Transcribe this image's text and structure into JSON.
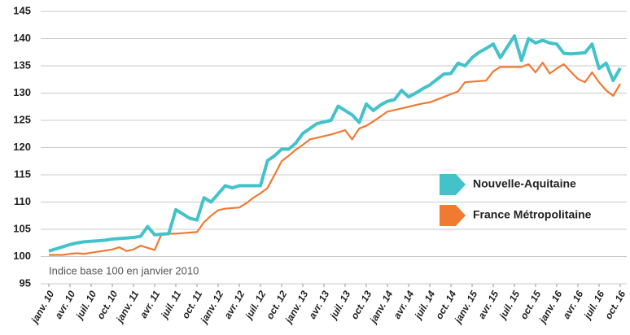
{
  "chart_data": {
    "type": "line",
    "note": "Indice base 100 en janvier 2010",
    "categories": [
      "janv. 10",
      null,
      null,
      "avr. 10",
      null,
      null,
      "juil. 10",
      null,
      null,
      "oct. 10",
      null,
      null,
      "janv. 11",
      null,
      null,
      "avr. 11",
      null,
      null,
      "juil. 11",
      null,
      null,
      "oct. 11",
      null,
      null,
      "janv. 12",
      null,
      null,
      "avr. 12",
      null,
      null,
      "juil. 12",
      null,
      null,
      "oct. 12",
      null,
      null,
      "janv. 13",
      null,
      null,
      "avr. 13",
      null,
      null,
      "juil. 13",
      null,
      null,
      "oct. 13",
      null,
      null,
      "janv. 14",
      null,
      null,
      "avr. 14",
      null,
      null,
      "juil. 14",
      null,
      null,
      "oct. 14",
      null,
      null,
      "janv. 15",
      null,
      null,
      "avr. 15",
      null,
      null,
      "juil. 15",
      null,
      null,
      "oct. 15",
      null,
      null,
      "janv. 16",
      null,
      null,
      "avr. 16",
      null,
      null,
      "juil. 16",
      null,
      null,
      "oct. 16"
    ],
    "series": [
      {
        "name": "Nouvelle-Aquitaine",
        "color": "#44c2c9",
        "values": [
          101,
          101.4,
          101.8,
          102.2,
          102.5,
          102.7,
          102.8,
          102.9,
          103,
          103.2,
          103.3,
          103.4,
          103.5,
          103.7,
          105.5,
          104,
          104.1,
          104.2,
          108.6,
          107.8,
          107,
          106.7,
          110.8,
          110,
          111.5,
          113,
          112.6,
          113,
          113,
          113,
          113,
          117.6,
          118.5,
          119.7,
          119.7,
          120.8,
          122.6,
          123.5,
          124.4,
          124.7,
          125,
          127.6,
          126.8,
          126,
          124.6,
          128,
          126.8,
          127.8,
          128.5,
          128.8,
          130.5,
          129.3,
          130,
          130.8,
          131.5,
          132.5,
          133.5,
          133.6,
          135.5,
          135,
          136.5,
          137.5,
          138.2,
          139,
          136.5,
          138.5,
          140.5,
          136,
          140,
          139.2,
          139.7,
          139.2,
          139,
          137.3,
          137.2,
          137.3,
          137.4,
          139,
          134.5,
          135.5,
          132.3,
          134.6
        ]
      },
      {
        "name": "France Métropolitaine",
        "color": "#f07a32",
        "values": [
          100.3,
          100.3,
          100.3,
          100.5,
          100.6,
          100.5,
          100.7,
          100.9,
          101.1,
          101.3,
          101.7,
          101.0,
          101.3,
          102.0,
          101.6,
          101.2,
          104.2,
          104.2,
          104.2,
          104.3,
          104.4,
          104.5,
          106.3,
          107.5,
          108.5,
          108.8,
          108.9,
          109.0,
          109.8,
          110.8,
          111.6,
          112.6,
          115.0,
          117.5,
          118.5,
          119.6,
          120.5,
          121.5,
          121.8,
          122.1,
          122.4,
          122.8,
          123.2,
          121.5,
          123.5,
          124.0,
          124.8,
          125.7,
          126.6,
          126.9,
          127.2,
          127.5,
          127.8,
          128.1,
          128.3,
          128.8,
          129.3,
          129.8,
          130.3,
          132.0,
          132.1,
          132.2,
          132.3,
          134.0,
          134.8,
          134.8,
          134.8,
          134.8,
          135.3,
          133.8,
          135.6,
          133.6,
          134.5,
          135.3,
          133.9,
          132.6,
          132.0,
          133.8,
          132.0,
          130.5,
          129.5,
          131.7
        ]
      }
    ],
    "ylim": [
      95,
      145
    ],
    "yticks": [
      95,
      100,
      105,
      110,
      115,
      120,
      125,
      130,
      135,
      140,
      145
    ],
    "grid": true
  }
}
